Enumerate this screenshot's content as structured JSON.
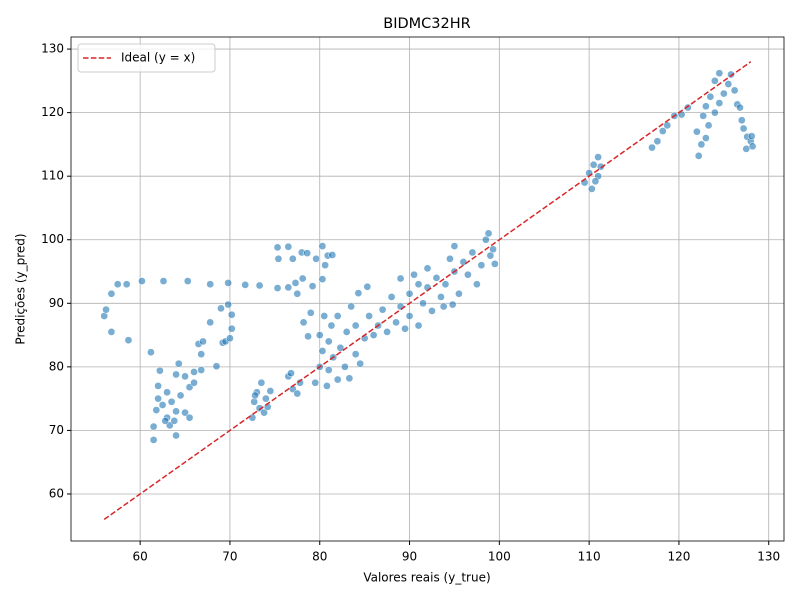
{
  "chart_data": {
    "type": "scatter",
    "title": "BIDMC32HR",
    "x_label": "Valores reais (y_true)",
    "y_label": "Predições (y_pred)",
    "xlim": [
      52.3,
      131.7
    ],
    "ylim": [
      52.6,
      131.9
    ],
    "xticks": [
      60,
      70,
      80,
      90,
      100,
      110,
      120,
      130
    ],
    "yticks": [
      60,
      70,
      80,
      90,
      100,
      110,
      120,
      130
    ],
    "grid": true,
    "legend": "upper left",
    "series": [
      {
        "color": "#1f77b4",
        "marker": "circle",
        "x": [
          56,
          56.2,
          56.8,
          56.8,
          57.5,
          58.5,
          58.7,
          60.2,
          61.2,
          62.6,
          65.3,
          67.8,
          67.8,
          68.5,
          69,
          69.2,
          69.8,
          69.8,
          70.2,
          70.2,
          71.7,
          73.3,
          75.3,
          75.3,
          75.4,
          76.5,
          76.5,
          77,
          77.3,
          77.5,
          78,
          78.1,
          78.6,
          79.2,
          79.6,
          80.3,
          80.3,
          80.6,
          80.9,
          81.4,
          66.5,
          66.8,
          67,
          66,
          66.8,
          69.5,
          70,
          61.5,
          61.5,
          61.8,
          62,
          62,
          62.2,
          62.5,
          63,
          63,
          63.3,
          63.5,
          64,
          64,
          64,
          64.3,
          64.5,
          65,
          65,
          65.5,
          65.5,
          66,
          62.8,
          63.8,
          72.5,
          72.7,
          73,
          73.3,
          73.5,
          74,
          74.5,
          73.8,
          72.8,
          74.2,
          76.5,
          77,
          77.5,
          77.8,
          76.8,
          79.5,
          80,
          80,
          80.3,
          80.5,
          80.8,
          81,
          81,
          81.3,
          81.5,
          82,
          82,
          82.3,
          82.8,
          83,
          83.3,
          83.5,
          84,
          84,
          84.5,
          85,
          85.3,
          85.5,
          86,
          79,
          78.2,
          78.7,
          84.3,
          86.5,
          87,
          87.5,
          88,
          88.5,
          89,
          89,
          89.5,
          90,
          90,
          90.5,
          91,
          91,
          91.5,
          92,
          92,
          92.5,
          93,
          93.5,
          93.8,
          94,
          94.5,
          95,
          95,
          95.5,
          96,
          96.5,
          97,
          97.5,
          98,
          98.5,
          98.8,
          99,
          99.5,
          99.3,
          94.8,
          109.5,
          110,
          110.3,
          110.5,
          111,
          111,
          111.3,
          110.7,
          117,
          117.6,
          118.2,
          118.7,
          119.5,
          120.3,
          121,
          122,
          122.2,
          122.5,
          122.7,
          123,
          123,
          123.3,
          123.5,
          124,
          124,
          124.5,
          124.5,
          125,
          125.5,
          125.8,
          126.2,
          126.5,
          126.8,
          127,
          127.2,
          127.6,
          127.5,
          128,
          128.2,
          128.1
        ],
        "values": [
          88,
          89,
          91.5,
          85.5,
          93,
          93,
          84.2,
          93.5,
          82.3,
          93.5,
          93.5,
          93,
          87,
          80.1,
          89.2,
          83.8,
          93.2,
          89.8,
          88.2,
          86,
          92.9,
          92.8,
          92.4,
          98.8,
          97,
          98.9,
          92.5,
          97,
          93.2,
          91.5,
          98,
          93.9,
          97.9,
          92.7,
          97,
          99,
          93.8,
          96,
          97.5,
          97.6,
          83.6,
          82,
          84,
          79.2,
          79.5,
          84,
          84.5,
          68.5,
          70.6,
          73.2,
          75,
          77,
          79.4,
          74,
          72,
          76,
          70.8,
          74.5,
          73,
          78.8,
          69.2,
          80.5,
          75.5,
          72.8,
          78.5,
          72,
          76.8,
          77.5,
          71.5,
          71.5,
          72,
          74.5,
          76,
          73.5,
          77.5,
          75,
          76.2,
          72.8,
          75.5,
          73.7,
          78.5,
          76.5,
          75.8,
          77.5,
          79,
          77.5,
          80,
          85,
          82.5,
          88,
          77,
          84,
          79.5,
          86.5,
          81.5,
          78,
          88,
          83,
          80,
          85.5,
          78.2,
          89.5,
          82,
          86.5,
          80.5,
          84.5,
          92.6,
          88,
          85,
          88.5,
          87,
          84.8,
          91.6,
          86.5,
          89,
          85.5,
          91,
          87,
          89.5,
          93.9,
          86,
          91.5,
          88,
          94.5,
          86.5,
          93,
          90,
          92.5,
          95.5,
          88.8,
          94,
          91,
          89.5,
          93,
          97,
          95,
          99,
          91.5,
          96.5,
          94.5,
          98,
          93,
          96,
          100,
          101,
          97.5,
          96.2,
          98.5,
          89.8,
          109,
          110.5,
          108,
          111.8,
          110,
          113,
          111.5,
          109.2,
          114.5,
          115.5,
          117.1,
          118,
          119.5,
          119.7,
          120.8,
          117,
          113.2,
          115,
          119.5,
          121,
          116,
          118,
          122.5,
          120,
          125,
          121.5,
          126.2,
          123,
          124.5,
          126,
          123.5,
          121.3,
          120.8,
          118.8,
          117.5,
          116.2,
          114.3,
          115.5,
          114.7,
          116.3
        ]
      },
      {
        "name": "Ideal (y = x)",
        "color": "#d62728",
        "marker": "dashed-line",
        "x": [
          56,
          128
        ],
        "values": [
          56,
          128
        ]
      }
    ]
  }
}
